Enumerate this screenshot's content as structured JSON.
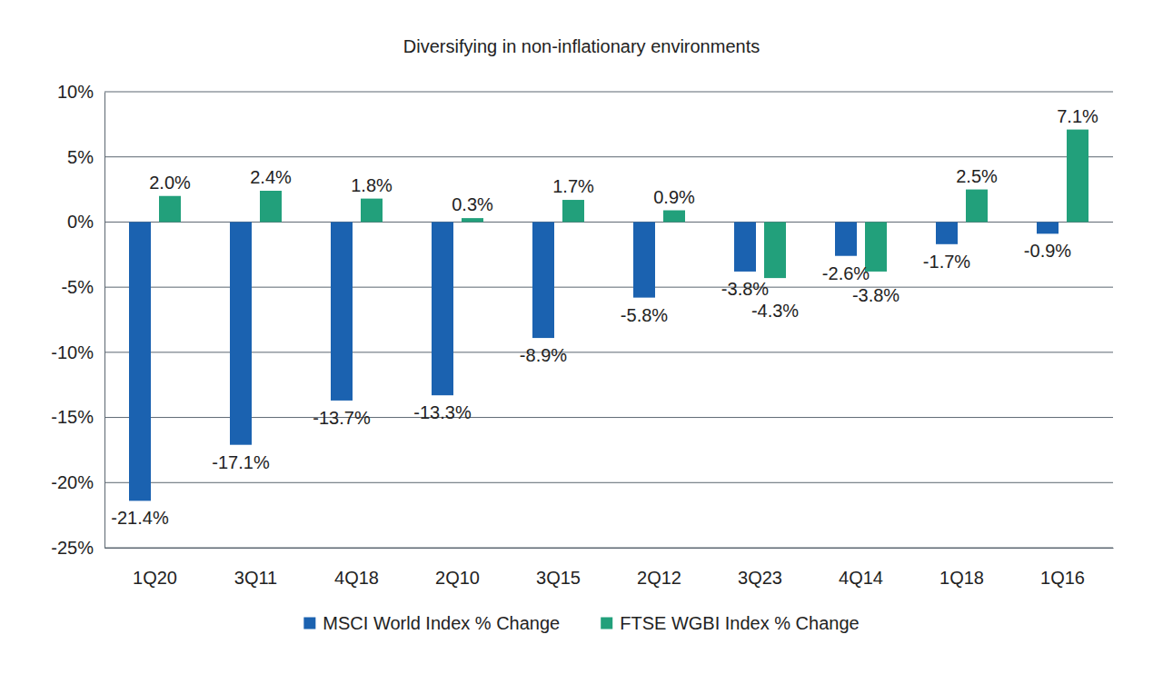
{
  "chart_data": {
    "type": "bar",
    "title": "Diversifying in non-inflationary environments",
    "categories": [
      "1Q20",
      "3Q11",
      "4Q18",
      "2Q10",
      "3Q15",
      "2Q12",
      "3Q23",
      "4Q14",
      "1Q18",
      "1Q16"
    ],
    "series": [
      {
        "name": "MSCI World Index % Change",
        "color": "#1b62b0",
        "values": [
          -21.4,
          -17.1,
          -13.7,
          -13.3,
          -8.9,
          -5.8,
          -3.8,
          -2.6,
          -1.7,
          -0.9
        ],
        "value_labels": [
          "-21.4%",
          "-17.1%",
          "-13.7%",
          "-13.3%",
          "-8.9%",
          "-5.8%",
          "-3.8%",
          "-2.6%",
          "-1.7%",
          "-0.9%"
        ]
      },
      {
        "name": "FTSE WGBI Index % Change",
        "color": "#22a07b",
        "values": [
          2.0,
          2.4,
          1.8,
          0.3,
          1.7,
          0.9,
          -4.3,
          -3.8,
          2.5,
          7.1
        ],
        "value_labels": [
          "2.0%",
          "2.4%",
          "1.8%",
          "0.3%",
          "1.7%",
          "0.9%",
          "-4.3%",
          "-3.8%",
          "2.5%",
          "7.1%"
        ]
      }
    ],
    "ylim": [
      -25,
      10
    ],
    "yticks": [
      {
        "value": -25,
        "label": "-25%"
      },
      {
        "value": -20,
        "label": "-20%"
      },
      {
        "value": -15,
        "label": "-15%"
      },
      {
        "value": -10,
        "label": "-10%"
      },
      {
        "value": -5,
        "label": "-5%"
      },
      {
        "value": 0,
        "label": "0%"
      },
      {
        "value": 5,
        "label": "5%"
      },
      {
        "value": 10,
        "label": "10%"
      }
    ],
    "grid": true,
    "legend": "bottom",
    "data_labels": true
  }
}
